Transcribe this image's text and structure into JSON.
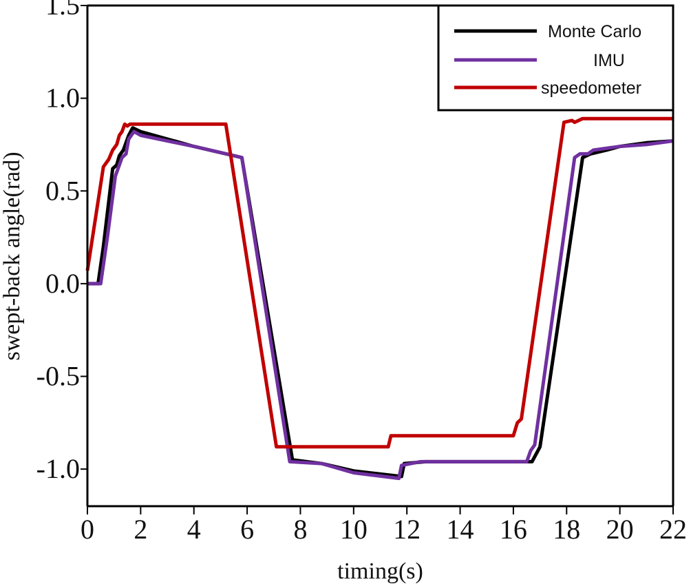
{
  "chart_data": {
    "type": "line",
    "title": "",
    "xlabel": "timing(s)",
    "ylabel": "swept-back angle(rad)",
    "xlim": [
      0,
      22
    ],
    "ylim": [
      -1.2,
      1.5
    ],
    "grid": false,
    "legend_position": "top-right",
    "xticks": [
      0,
      2,
      4,
      6,
      8,
      10,
      12,
      14,
      16,
      18,
      20,
      22
    ],
    "xtick_labels": [
      "0",
      "2",
      "4",
      "6",
      "8",
      "10",
      "12",
      "14",
      "16",
      "18",
      "20",
      "22"
    ],
    "yticks": [
      -1.0,
      -0.5,
      0.0,
      0.5,
      1.0,
      1.5
    ],
    "ytick_labels": [
      "-1.0",
      "-0.5",
      "0.0",
      "0.5",
      "1.0",
      "1.5"
    ],
    "series": [
      {
        "name": "Monte Carlo",
        "color": "#000000",
        "points": [
          [
            0,
            0.0
          ],
          [
            0.4,
            0.0
          ],
          [
            0.6,
            0.2
          ],
          [
            0.95,
            0.62
          ],
          [
            1.1,
            0.64
          ],
          [
            1.2,
            0.69
          ],
          [
            1.35,
            0.72
          ],
          [
            1.55,
            0.8
          ],
          [
            1.7,
            0.84
          ],
          [
            2.0,
            0.82
          ],
          [
            4,
            0.74
          ],
          [
            5.5,
            0.69
          ],
          [
            5.8,
            0.68
          ],
          [
            7.7,
            -0.95
          ],
          [
            8.8,
            -0.97
          ],
          [
            10,
            -1.01
          ],
          [
            11.8,
            -1.04
          ],
          [
            11.9,
            -0.97
          ],
          [
            12.7,
            -0.96
          ],
          [
            16.7,
            -0.96
          ],
          [
            17.0,
            -0.88
          ],
          [
            18.6,
            0.68
          ],
          [
            18.9,
            0.7
          ],
          [
            19.2,
            0.71
          ],
          [
            19.5,
            0.72
          ],
          [
            20,
            0.74
          ],
          [
            21,
            0.76
          ],
          [
            22,
            0.77
          ]
        ]
      },
      {
        "name": "IMU",
        "color": "#7030A0",
        "points": [
          [
            0,
            0.0
          ],
          [
            0.5,
            0.0
          ],
          [
            0.75,
            0.25
          ],
          [
            1.05,
            0.58
          ],
          [
            1.15,
            0.62
          ],
          [
            1.3,
            0.68
          ],
          [
            1.45,
            0.7
          ],
          [
            1.55,
            0.78
          ],
          [
            1.75,
            0.82
          ],
          [
            2.0,
            0.8
          ],
          [
            4,
            0.74
          ],
          [
            5.5,
            0.69
          ],
          [
            5.8,
            0.68
          ],
          [
            7.6,
            -0.96
          ],
          [
            8.8,
            -0.97
          ],
          [
            10,
            -1.02
          ],
          [
            11.7,
            -1.05
          ],
          [
            11.8,
            -0.98
          ],
          [
            12.5,
            -0.96
          ],
          [
            16.5,
            -0.96
          ],
          [
            16.65,
            -0.9
          ],
          [
            16.8,
            -0.87
          ],
          [
            18.3,
            0.68
          ],
          [
            18.5,
            0.7
          ],
          [
            18.8,
            0.7
          ],
          [
            19.0,
            0.72
          ],
          [
            20,
            0.74
          ],
          [
            21,
            0.75
          ],
          [
            22,
            0.77
          ]
        ]
      },
      {
        "name": "speedometer",
        "color": "#C00000",
        "points": [
          [
            0,
            0.07
          ],
          [
            0.6,
            0.63
          ],
          [
            0.8,
            0.67
          ],
          [
            0.95,
            0.72
          ],
          [
            1.1,
            0.75
          ],
          [
            1.2,
            0.8
          ],
          [
            1.3,
            0.82
          ],
          [
            1.4,
            0.86
          ],
          [
            1.5,
            0.85
          ],
          [
            1.6,
            0.86
          ],
          [
            5.2,
            0.86
          ],
          [
            7.1,
            -0.88
          ],
          [
            11.3,
            -0.88
          ],
          [
            11.4,
            -0.82
          ],
          [
            16.0,
            -0.82
          ],
          [
            16.15,
            -0.75
          ],
          [
            16.3,
            -0.73
          ],
          [
            17.9,
            0.87
          ],
          [
            18.2,
            0.88
          ],
          [
            18.3,
            0.87
          ],
          [
            18.6,
            0.89
          ],
          [
            22,
            0.89
          ]
        ]
      }
    ]
  }
}
